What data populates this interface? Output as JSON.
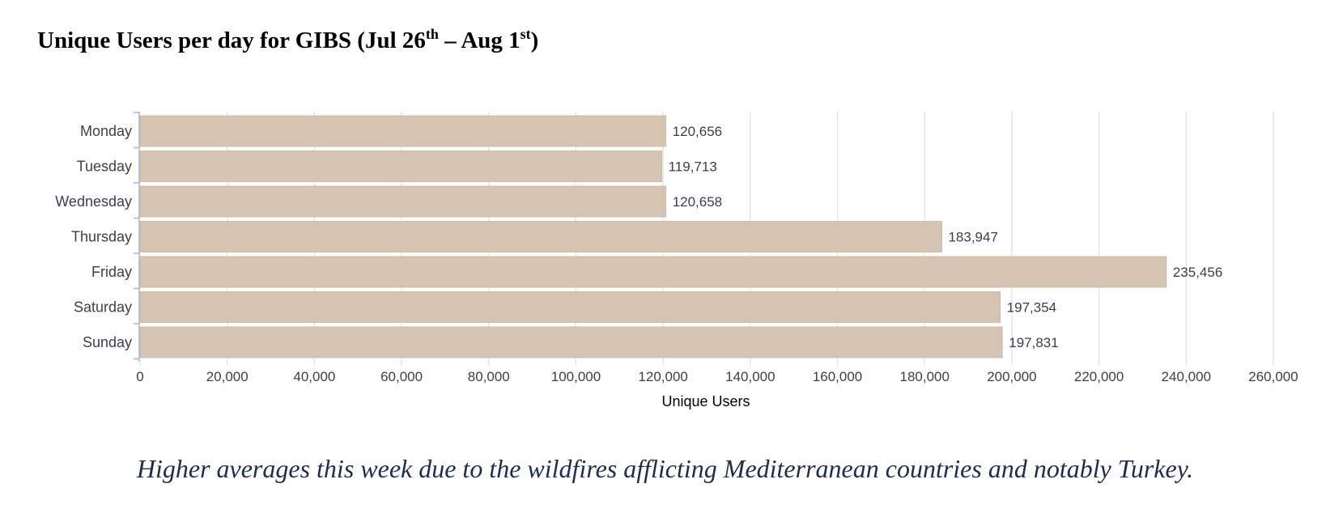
{
  "title": {
    "part1": "Unique Users per day for GIBS (Jul 26",
    "sup1": "th",
    "part2": " – Aug 1",
    "sup2": "st",
    "part3": ")"
  },
  "caption": "Higher averages this week due to the wildfires afflicting Mediterranean countries and notably Turkey.",
  "chart_data": {
    "type": "bar",
    "orientation": "horizontal",
    "categories": [
      "Monday",
      "Tuesday",
      "Wednesday",
      "Thursday",
      "Friday",
      "Saturday",
      "Sunday"
    ],
    "values": [
      120656,
      119713,
      120658,
      183947,
      235456,
      197354,
      197831
    ],
    "value_labels": [
      "120,656",
      "119,713",
      "120,658",
      "183,947",
      "235,456",
      "197,354",
      "197,831"
    ],
    "xlabel": "Unique Users",
    "ylabel": "",
    "xlim": [
      0,
      260000
    ],
    "xticks": [
      0,
      20000,
      40000,
      60000,
      80000,
      100000,
      120000,
      140000,
      160000,
      180000,
      200000,
      220000,
      240000,
      260000
    ],
    "xtick_labels": [
      "0",
      "20,000",
      "40,000",
      "60,000",
      "80,000",
      "100,000",
      "120,000",
      "140,000",
      "160,000",
      "180,000",
      "200,000",
      "220,000",
      "240,000",
      "260,000"
    ],
    "grid": "vertical",
    "bar_color": "#d6c4b3",
    "grid_color": "#e3e3e3",
    "axis_color": "#a9b9d6",
    "text_color": "#3b3f4a"
  }
}
